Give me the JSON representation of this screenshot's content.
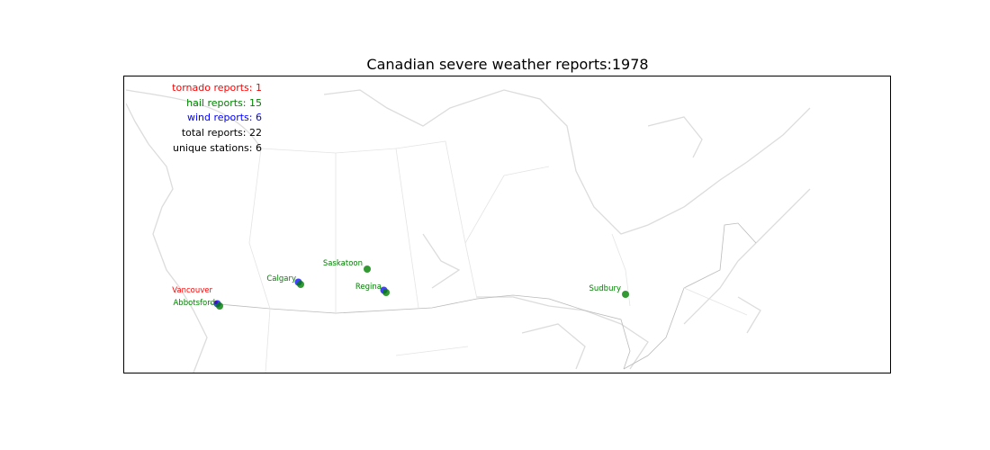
{
  "chart_data": {
    "type": "map",
    "title": "Canadian severe weather reports:1978",
    "summary": [
      {
        "key": "tornado",
        "text": "tornado reports: 1",
        "color": "#ff0000"
      },
      {
        "key": "hail",
        "text": "hail reports: 15",
        "color": "#008000"
      },
      {
        "key": "wind",
        "text": "wind reports: 6",
        "color": "#0000ff"
      },
      {
        "key": "total",
        "text": "total reports: 22",
        "color": "#000000"
      },
      {
        "key": "stations",
        "text": "unique stations: 6",
        "color": "#000000"
      }
    ],
    "colors": {
      "tornado": "#ff0000",
      "hail": "#008000",
      "wind": "#0000ff",
      "coast": "#dddddd",
      "borders": "#bbbbbb"
    },
    "stations": [
      {
        "name": "Vancouver",
        "types": [
          "tornado"
        ],
        "label_color": "#ff0000"
      },
      {
        "name": "Abbotsford",
        "types": [
          "wind",
          "hail"
        ],
        "label_color": "#008000"
      },
      {
        "name": "Calgary",
        "types": [
          "wind",
          "hail"
        ],
        "label_color": "#008000"
      },
      {
        "name": "Saskatoon",
        "types": [
          "hail"
        ],
        "label_color": "#008000"
      },
      {
        "name": "Regina",
        "types": [
          "wind",
          "hail"
        ],
        "label_color": "#008000"
      },
      {
        "name": "Sudbury",
        "types": [
          "hail"
        ],
        "label_color": "#008000"
      }
    ]
  }
}
